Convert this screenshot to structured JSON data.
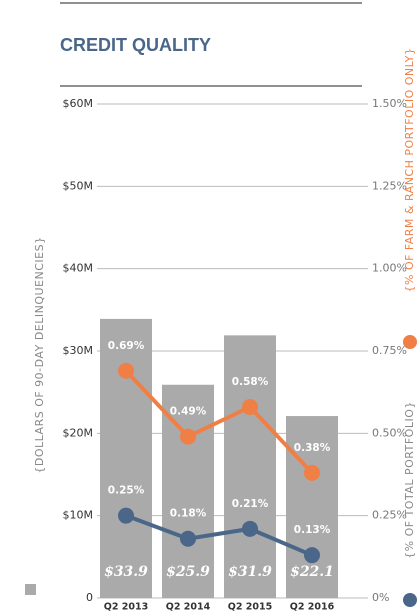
{
  "chart_data": {
    "type": "bar",
    "title": "CREDIT QUALITY",
    "y_label": "{DOLLARS OF 90-DAY DELINQUENCIES}",
    "categories": [
      "Q2 2013",
      "Q2 2014",
      "Q2 2015",
      "Q2 2016"
    ],
    "series": [
      {
        "type": "bar",
        "color": "#aaaaaa",
        "values": [
          33.9,
          25.9,
          31.9,
          22.1
        ],
        "value_labels": [
          "$33.9",
          "$25.9",
          "$31.9",
          "$22.1"
        ]
      },
      {
        "type": "line",
        "axis": "y2",
        "name": "{% OF FARM & RANCH PORTFOLIO ONLY}",
        "color": "#f07f45",
        "values": [
          0.69,
          0.49,
          0.58,
          0.38
        ],
        "value_labels": [
          "0.69%",
          "0.49%",
          "0.58%",
          "0.38%"
        ]
      },
      {
        "type": "line",
        "axis": "y2",
        "name": "{% OF TOTAL PORTFOLIO}",
        "color": "#4a6688",
        "values": [
          0.25,
          0.18,
          0.21,
          0.13
        ],
        "value_labels": [
          "0.25%",
          "0.18%",
          "0.21%",
          "0.13%"
        ]
      }
    ],
    "ylim": [
      0,
      60
    ],
    "yticks": [
      {
        "value": 0,
        "label": "0"
      },
      {
        "value": 10,
        "label": "$10M"
      },
      {
        "value": 20,
        "label": "$20M"
      },
      {
        "value": 30,
        "label": "$30M"
      },
      {
        "value": 40,
        "label": "$40M"
      },
      {
        "value": 50,
        "label": "$50M"
      },
      {
        "value": 60,
        "label": "$60M"
      }
    ],
    "y2lim": [
      0,
      1.5
    ],
    "y2ticks": [
      {
        "value": 0,
        "label": "0%"
      },
      {
        "value": 0.25,
        "label": "0.25%"
      },
      {
        "value": 0.5,
        "label": "0.50%"
      },
      {
        "value": 0.75,
        "label": "0.75%"
      },
      {
        "value": 1,
        "label": "1.00%"
      },
      {
        "value": 1.25,
        "label": "1.25%"
      },
      {
        "value": 1.5,
        "label": "1.50%"
      }
    ],
    "grid": true
  }
}
